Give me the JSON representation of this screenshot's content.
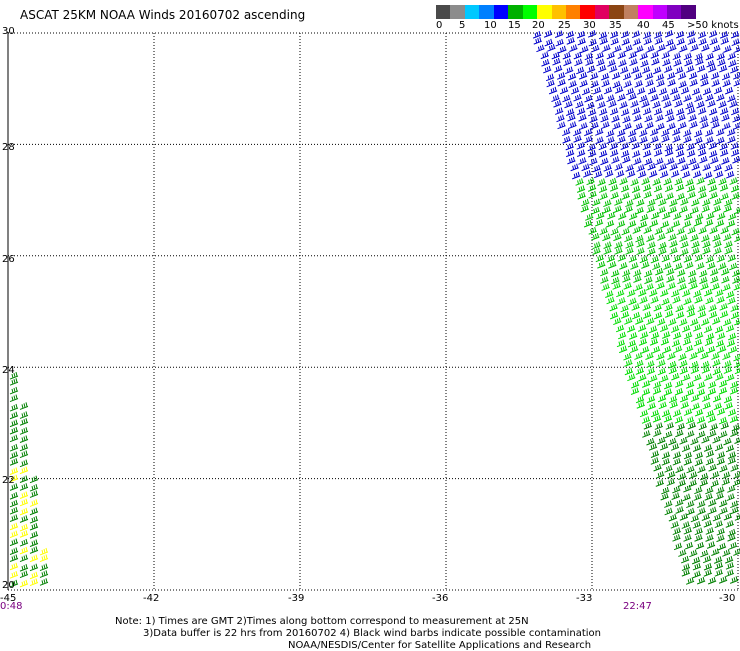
{
  "title": "ASCAT 25KM NOAA Winds 20160702 ascending",
  "colorbar": {
    "colors": [
      "#4a4a4a",
      "#8c8c8c",
      "#00c8ff",
      "#0080ff",
      "#0000ff",
      "#00b000",
      "#00ff00",
      "#ffff00",
      "#ffc000",
      "#ff8000",
      "#ff0000",
      "#e00060",
      "#8b4513",
      "#c08060",
      "#ff00ff",
      "#c000ff",
      "#8000c0",
      "#500080"
    ],
    "labels": [
      "0",
      "5",
      "10",
      "15",
      "20",
      "25",
      "30",
      "35",
      "40",
      "45",
      ">50 knots"
    ]
  },
  "axes": {
    "lat_labels": [
      "30",
      "28",
      "26",
      "24",
      "22",
      "20"
    ],
    "lon_labels": [
      "-45",
      "-42",
      "-39",
      "-36",
      "-33",
      "-30"
    ]
  },
  "times": {
    "left": "0:48",
    "right": "22:47"
  },
  "notes": {
    "line1": "Note: 1) Times are GMT 2)Times along bottom correspond to measurement at 25N",
    "line2": "3)Data buffer is 22 hrs from 20160702 4) Black wind barbs indicate possible contamination",
    "line3": "NOAA/NESDIS/Center for Satellite Applications and Research"
  },
  "swaths": {
    "east": {
      "color_bands": [
        {
          "lat_top": 30.0,
          "lat_bottom": 27.4,
          "color": "#0000cc",
          "speed_kt": 15
        },
        {
          "lat_top": 27.4,
          "lat_bottom": 25.5,
          "color": "#00c000",
          "speed_kt": 20
        },
        {
          "lat_top": 25.5,
          "lat_bottom": 23.0,
          "color": "#00dd00",
          "speed_kt": 18
        },
        {
          "lat_top": 23.0,
          "lat_bottom": 20.0,
          "color": "#008000",
          "speed_kt": 20
        }
      ]
    },
    "west": {
      "color_bands": [
        {
          "lat_top": 24.0,
          "lat_bottom": 20.0,
          "color": "#008000",
          "speed_kt": 20
        }
      ],
      "accent_color": "#ffff00"
    }
  }
}
